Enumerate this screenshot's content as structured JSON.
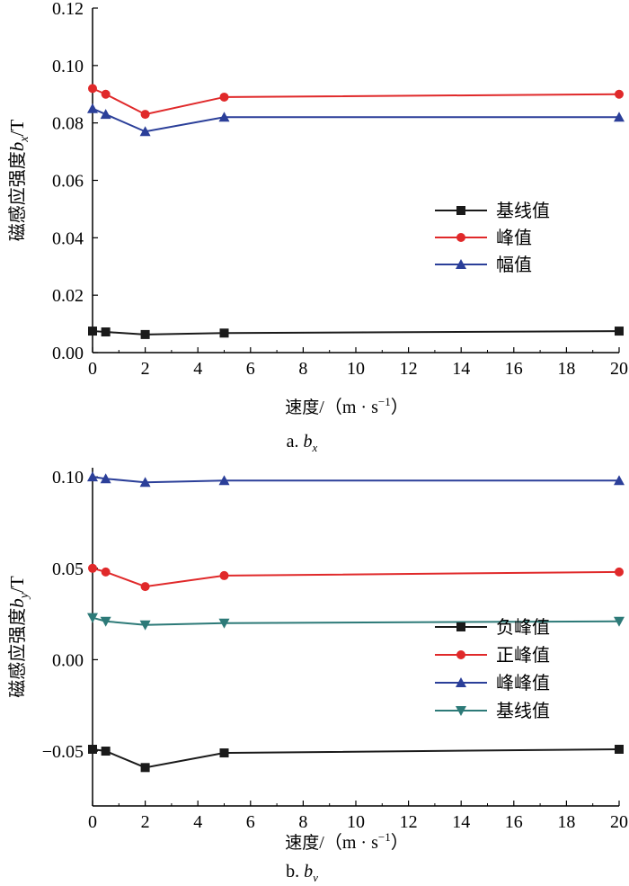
{
  "charts": [
    {
      "type": "line",
      "caption": {
        "prefix": "a. ",
        "var": "b",
        "sub": "x"
      },
      "ylabel": {
        "cn": "磁感应强度",
        "var": "b",
        "sub": "x",
        "unit": "/T"
      },
      "xlabel": {
        "cn": "速度",
        "unit": "/（m · s",
        "exp": "−1",
        "close": "）"
      },
      "x_ticks": [
        "0",
        "2",
        "4",
        "6",
        "8",
        "10",
        "12",
        "14",
        "16",
        "18",
        "20"
      ],
      "y_ticks": [
        "0.00",
        "0.02",
        "0.04",
        "0.06",
        "0.08",
        "0.10",
        "0.12"
      ],
      "xlim": [
        0,
        20
      ],
      "ylim": [
        0,
        0.12
      ],
      "x": [
        0,
        0.5,
        2,
        5,
        20
      ],
      "series": [
        {
          "name": "基线值",
          "color": "#1a1a1a",
          "marker": "square",
          "values": [
            0.0075,
            0.0072,
            0.0063,
            0.0068,
            0.0075
          ]
        },
        {
          "name": "峰值",
          "color": "#e0292a",
          "marker": "circle",
          "values": [
            0.092,
            0.09,
            0.083,
            0.089,
            0.09
          ]
        },
        {
          "name": "幅值",
          "color": "#2b3f99",
          "marker": "triangle",
          "values": [
            0.085,
            0.083,
            0.077,
            0.082,
            0.082
          ]
        }
      ],
      "legend_position": "center-right"
    },
    {
      "type": "line",
      "caption": {
        "prefix": "b. ",
        "var": "b",
        "sub": "y"
      },
      "ylabel": {
        "cn": "磁感应强度",
        "var": "b",
        "sub": "y",
        "unit": "/T"
      },
      "xlabel": {
        "cn": "速度",
        "unit": "/（m · s",
        "exp": "−1",
        "close": "）"
      },
      "x_ticks": [
        "0",
        "2",
        "4",
        "6",
        "8",
        "10",
        "12",
        "14",
        "16",
        "18",
        "20"
      ],
      "y_ticks": [
        "−0.05",
        "0.00",
        "0.05",
        "0.10"
      ],
      "xlim": [
        0,
        20
      ],
      "ylim": [
        -0.08,
        0.105
      ],
      "x": [
        0,
        0.5,
        2,
        5,
        20
      ],
      "series": [
        {
          "name": "负峰值",
          "color": "#1a1a1a",
          "marker": "square",
          "values": [
            -0.049,
            -0.05,
            -0.059,
            -0.051,
            -0.049
          ]
        },
        {
          "name": "正峰值",
          "color": "#e0292a",
          "marker": "circle",
          "values": [
            0.05,
            0.048,
            0.04,
            0.046,
            0.048
          ]
        },
        {
          "name": "峰峰值",
          "color": "#2b3f99",
          "marker": "triangle",
          "values": [
            0.1,
            0.099,
            0.097,
            0.098,
            0.098
          ]
        },
        {
          "name": "基线值",
          "color": "#2d7a78",
          "marker": "triangle-down",
          "values": [
            0.023,
            0.021,
            0.019,
            0.02,
            0.021
          ]
        }
      ],
      "legend_position": "lower-right"
    }
  ]
}
